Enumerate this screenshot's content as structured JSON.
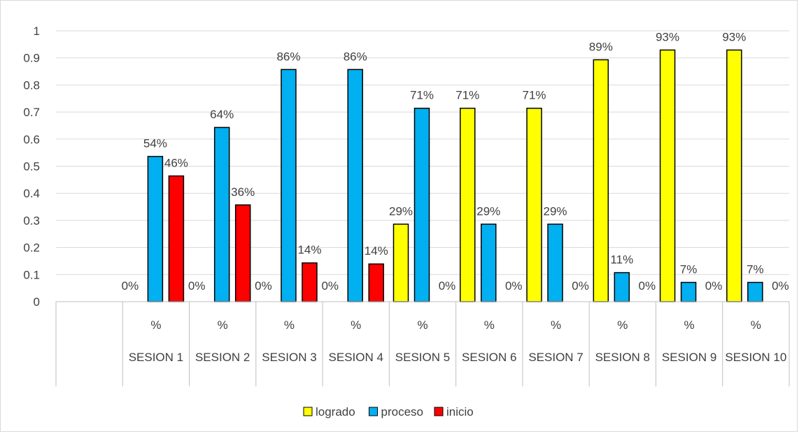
{
  "chart_data": {
    "type": "bar",
    "title": "",
    "xlabel": "",
    "ylabel": "",
    "ylim": [
      0,
      1
    ],
    "yticks": [
      "0",
      "0.1",
      "0.2",
      "0.3",
      "0.4",
      "0.5",
      "0.6",
      "0.7",
      "0.8",
      "0.9",
      "1"
    ],
    "grid": true,
    "legend_position": "bottom",
    "categories": [
      "",
      "SESION 1",
      "SESION 2",
      "SESION 3",
      "SESION 4",
      "SESION 5",
      "SESION 6",
      "SESION 7",
      "SESION 8",
      "SESION 9",
      "SESION 10"
    ],
    "subcategories": [
      "",
      "%",
      "%",
      "%",
      "%",
      "%",
      "%",
      "%",
      "%",
      "%",
      "%"
    ],
    "series": [
      {
        "name": "logrado",
        "color": "#ffff00",
        "values": [
          null,
          0,
          0,
          0,
          0,
          0.286,
          0.714,
          0.714,
          0.893,
          0.929,
          0.929
        ],
        "labels": [
          "",
          "0%",
          "0%",
          "0%",
          "0%",
          "29%",
          "71%",
          "71%",
          "89%",
          "93%",
          "93%"
        ]
      },
      {
        "name": "proceso",
        "color": "#00b0f0",
        "values": [
          null,
          0.536,
          0.643,
          0.857,
          0.857,
          0.714,
          0.286,
          0.286,
          0.107,
          0.071,
          0.071
        ],
        "labels": [
          "",
          "54%",
          "64%",
          "86%",
          "86%",
          "71%",
          "29%",
          "29%",
          "11%",
          "7%",
          "7%"
        ]
      },
      {
        "name": "inicio",
        "color": "#ff0000",
        "values": [
          null,
          0.464,
          0.357,
          0.143,
          0.139,
          0,
          0,
          0,
          0,
          0,
          0
        ],
        "labels": [
          "",
          "46%",
          "36%",
          "14%",
          "14%",
          "0%",
          "0%",
          "0%",
          "0%",
          "0%",
          "0%"
        ]
      }
    ]
  }
}
